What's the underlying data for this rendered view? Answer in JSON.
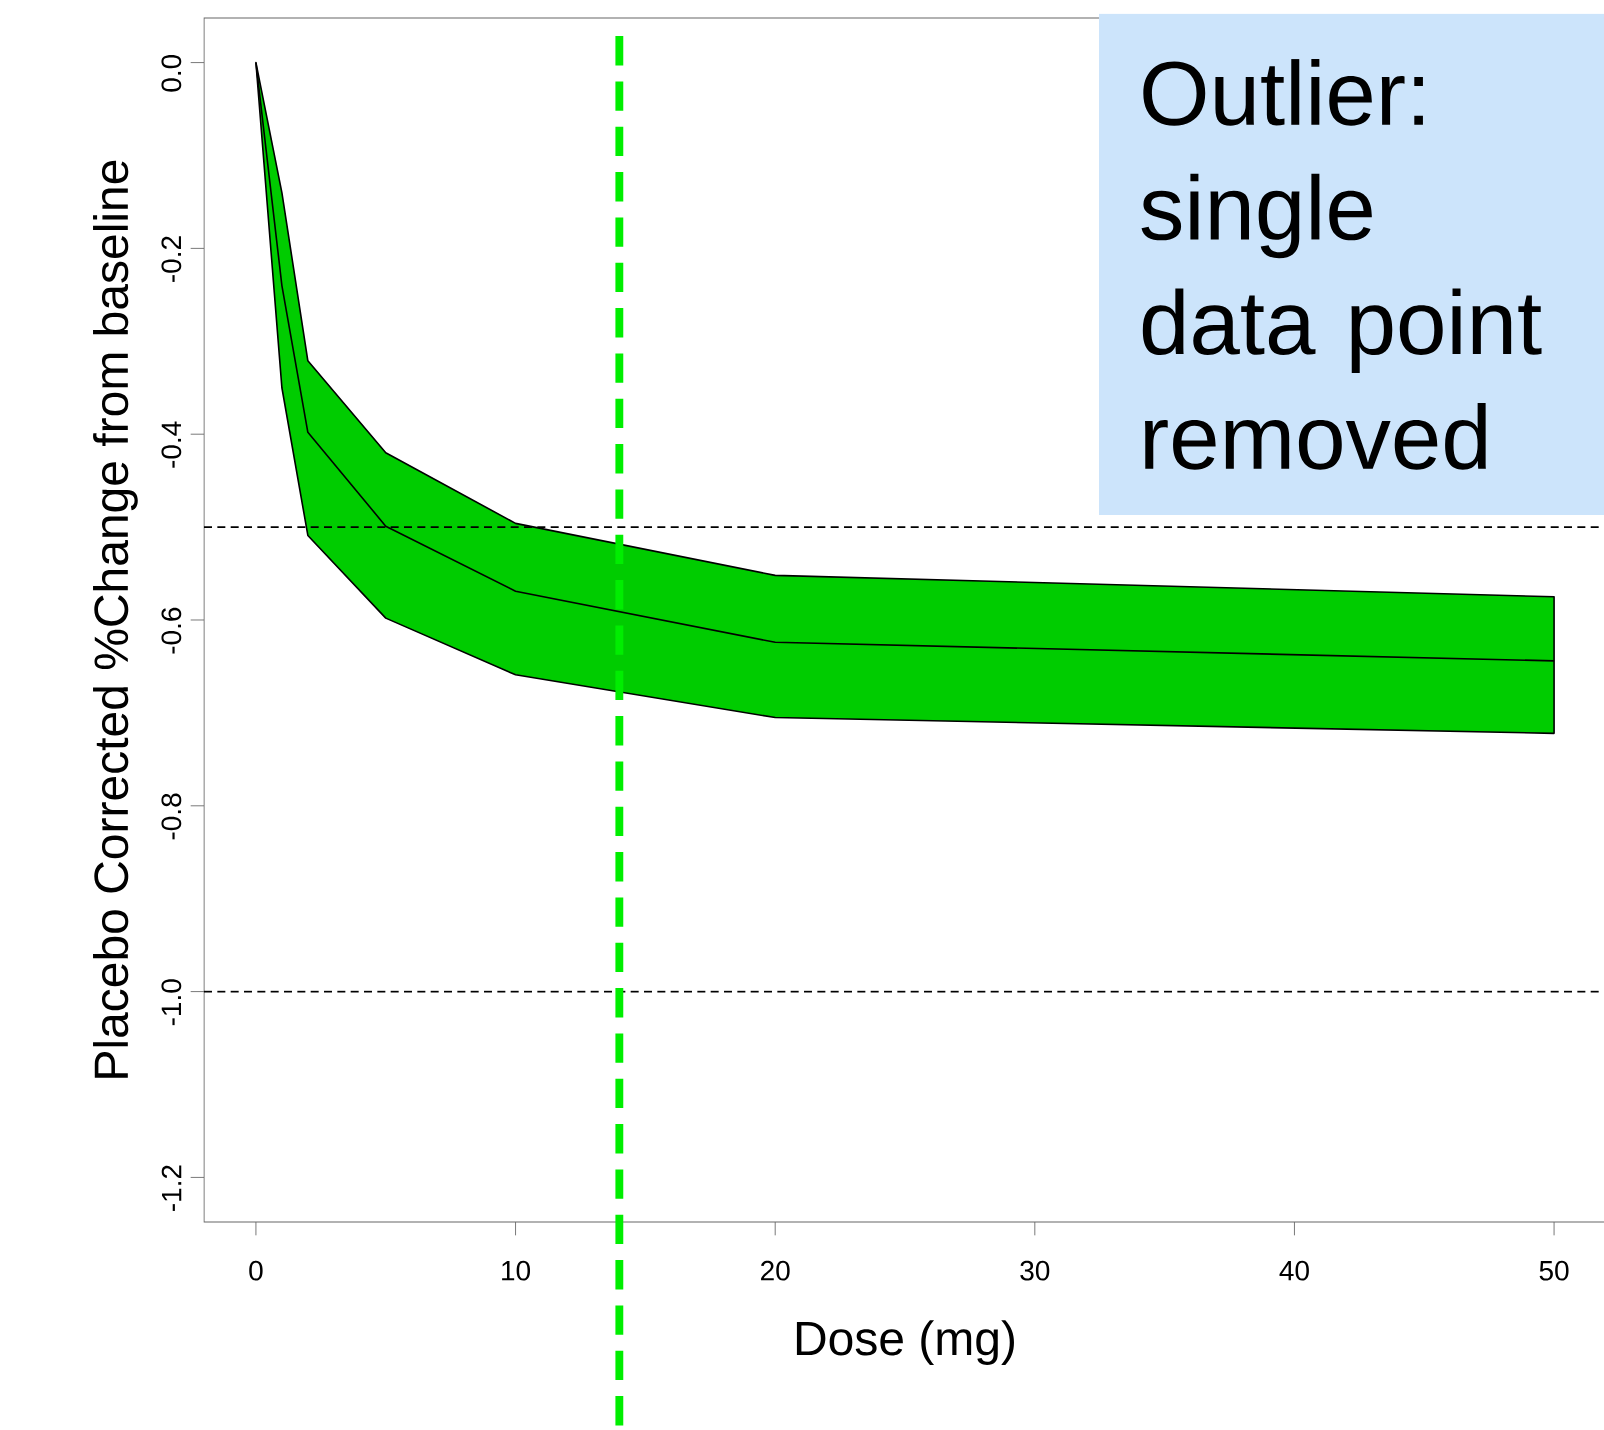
{
  "chart_data": {
    "type": "line",
    "xlabel": "Dose (mg)",
    "ylabel": "Placebo Corrected %Change from baseline",
    "x": [
      0,
      1,
      2,
      5,
      10,
      20,
      50
    ],
    "series": [
      {
        "color": "#000000",
        "colors": [
          "#00cc00",
          "#00cc00",
          "#00cc00",
          "#00cc00",
          "#00cc00",
          "#00cc00",
          "#00cc00"
        ],
        "values": [
          0,
          -0.24,
          -0.398,
          -0.499,
          -0.569,
          -0.624,
          -0.644
        ],
        "lower": [
          0,
          -0.35,
          -0.509,
          -0.598,
          -0.659,
          -0.705,
          -0.722
        ],
        "upper": [
          0,
          -0.14,
          -0.321,
          -0.42,
          -0.496,
          -0.552,
          -0.575
        ]
      }
    ],
    "xlim": [
      -2,
      52
    ],
    "ylim": [
      -1.248,
      0.048
    ],
    "xticks": [
      0,
      10,
      20,
      30,
      40,
      50
    ],
    "yticks": [
      {
        "value": -1.2,
        "label": "-1.2"
      },
      {
        "value": -1.0,
        "label": "-1.0"
      },
      {
        "value": -0.8,
        "label": "-0.8"
      },
      {
        "value": -0.6,
        "label": "-0.6"
      },
      {
        "value": -0.4,
        "label": "-0.4"
      },
      {
        "value": -0.2,
        "label": "-0.2"
      },
      {
        "value": 0,
        "label": "0.0"
      }
    ],
    "ref_lines": [
      {
        "axis": "y",
        "value": -0.5,
        "color": "#000000",
        "line_style": "dashed"
      },
      {
        "axis": "y",
        "value": -1.0,
        "color": "#000000",
        "line_style": "dashed"
      },
      {
        "axis": "x",
        "value": 14,
        "color": "#00ee00",
        "line_style": "dashed"
      }
    ],
    "annotations": [
      "Outlier: single data point removed"
    ],
    "grid": false,
    "marker": "none",
    "line_style": "solid"
  }
}
